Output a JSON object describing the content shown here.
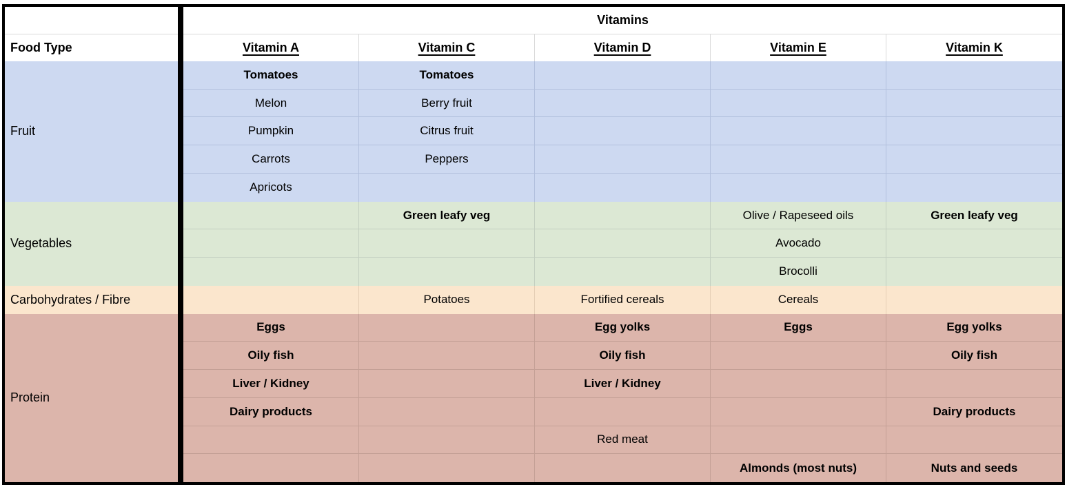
{
  "table": {
    "title": "Vitamins",
    "corner_header": "Food Type",
    "columns": [
      "Vitamin A",
      "Vitamin C",
      "Vitamin D",
      "Vitamin E",
      "Vitamin K"
    ],
    "colors": {
      "border": "#000000",
      "white_gridline": "#d9d9d9",
      "fruit_fill": "#cdd9f1",
      "fruit_gridline": "#b2c0dd",
      "vegetables_fill": "#dce8d4",
      "vegetables_gridline": "#c3cfc0",
      "carbohydrates_fill": "#fbe6cd",
      "carbohydrates_gridline": "#e4ceb5",
      "protein_fill": "#dcb5ab",
      "protein_gridline": "#c4a096"
    },
    "sections": [
      {
        "name": "Fruit",
        "fill": "#cdd9f1",
        "gridline": "#b2c0dd",
        "rows": [
          [
            {
              "text": "Tomatoes",
              "bold": true
            },
            {
              "text": "Tomatoes",
              "bold": true
            },
            {
              "text": ""
            },
            {
              "text": ""
            },
            {
              "text": ""
            }
          ],
          [
            {
              "text": "Melon"
            },
            {
              "text": "Berry fruit"
            },
            {
              "text": ""
            },
            {
              "text": ""
            },
            {
              "text": ""
            }
          ],
          [
            {
              "text": "Pumpkin"
            },
            {
              "text": "Citrus fruit"
            },
            {
              "text": ""
            },
            {
              "text": ""
            },
            {
              "text": ""
            }
          ],
          [
            {
              "text": "Carrots"
            },
            {
              "text": "Peppers"
            },
            {
              "text": ""
            },
            {
              "text": ""
            },
            {
              "text": ""
            }
          ],
          [
            {
              "text": "Apricots"
            },
            {
              "text": ""
            },
            {
              "text": ""
            },
            {
              "text": ""
            },
            {
              "text": ""
            }
          ]
        ]
      },
      {
        "name": "Vegetables",
        "fill": "#dce8d4",
        "gridline": "#c3cfc0",
        "rows": [
          [
            {
              "text": ""
            },
            {
              "text": "Green leafy veg",
              "bold": true
            },
            {
              "text": ""
            },
            {
              "text": "Olive / Rapeseed oils"
            },
            {
              "text": "Green leafy veg",
              "bold": true
            }
          ],
          [
            {
              "text": ""
            },
            {
              "text": ""
            },
            {
              "text": ""
            },
            {
              "text": "Avocado"
            },
            {
              "text": ""
            }
          ],
          [
            {
              "text": ""
            },
            {
              "text": ""
            },
            {
              "text": ""
            },
            {
              "text": "Brocolli"
            },
            {
              "text": ""
            }
          ]
        ]
      },
      {
        "name": "Carbohydrates / Fibre",
        "fill": "#fbe6cd",
        "gridline": "#e4ceb5",
        "rows": [
          [
            {
              "text": ""
            },
            {
              "text": "Potatoes"
            },
            {
              "text": "Fortified cereals"
            },
            {
              "text": "Cereals"
            },
            {
              "text": ""
            }
          ]
        ]
      },
      {
        "name": "Protein",
        "fill": "#dcb5ab",
        "gridline": "#c4a096",
        "rows": [
          [
            {
              "text": "Eggs",
              "bold": true
            },
            {
              "text": ""
            },
            {
              "text": "Egg yolks",
              "bold": true
            },
            {
              "text": "Eggs",
              "bold": true
            },
            {
              "text": "Egg yolks",
              "bold": true
            }
          ],
          [
            {
              "text": "Oily fish",
              "bold": true
            },
            {
              "text": ""
            },
            {
              "text": "Oily fish",
              "bold": true
            },
            {
              "text": ""
            },
            {
              "text": "Oily fish",
              "bold": true
            }
          ],
          [
            {
              "text": "Liver / Kidney",
              "bold": true
            },
            {
              "text": ""
            },
            {
              "text": "Liver / Kidney",
              "bold": true
            },
            {
              "text": ""
            },
            {
              "text": ""
            }
          ],
          [
            {
              "text": "Dairy products",
              "bold": true
            },
            {
              "text": ""
            },
            {
              "text": ""
            },
            {
              "text": ""
            },
            {
              "text": "Dairy products",
              "bold": true
            }
          ],
          [
            {
              "text": ""
            },
            {
              "text": ""
            },
            {
              "text": "Red meat"
            },
            {
              "text": ""
            },
            {
              "text": ""
            }
          ],
          [
            {
              "text": ""
            },
            {
              "text": ""
            },
            {
              "text": ""
            },
            {
              "text": "Almonds (most nuts)",
              "bold": true
            },
            {
              "text": "Nuts and seeds",
              "bold": true
            }
          ]
        ]
      }
    ]
  }
}
